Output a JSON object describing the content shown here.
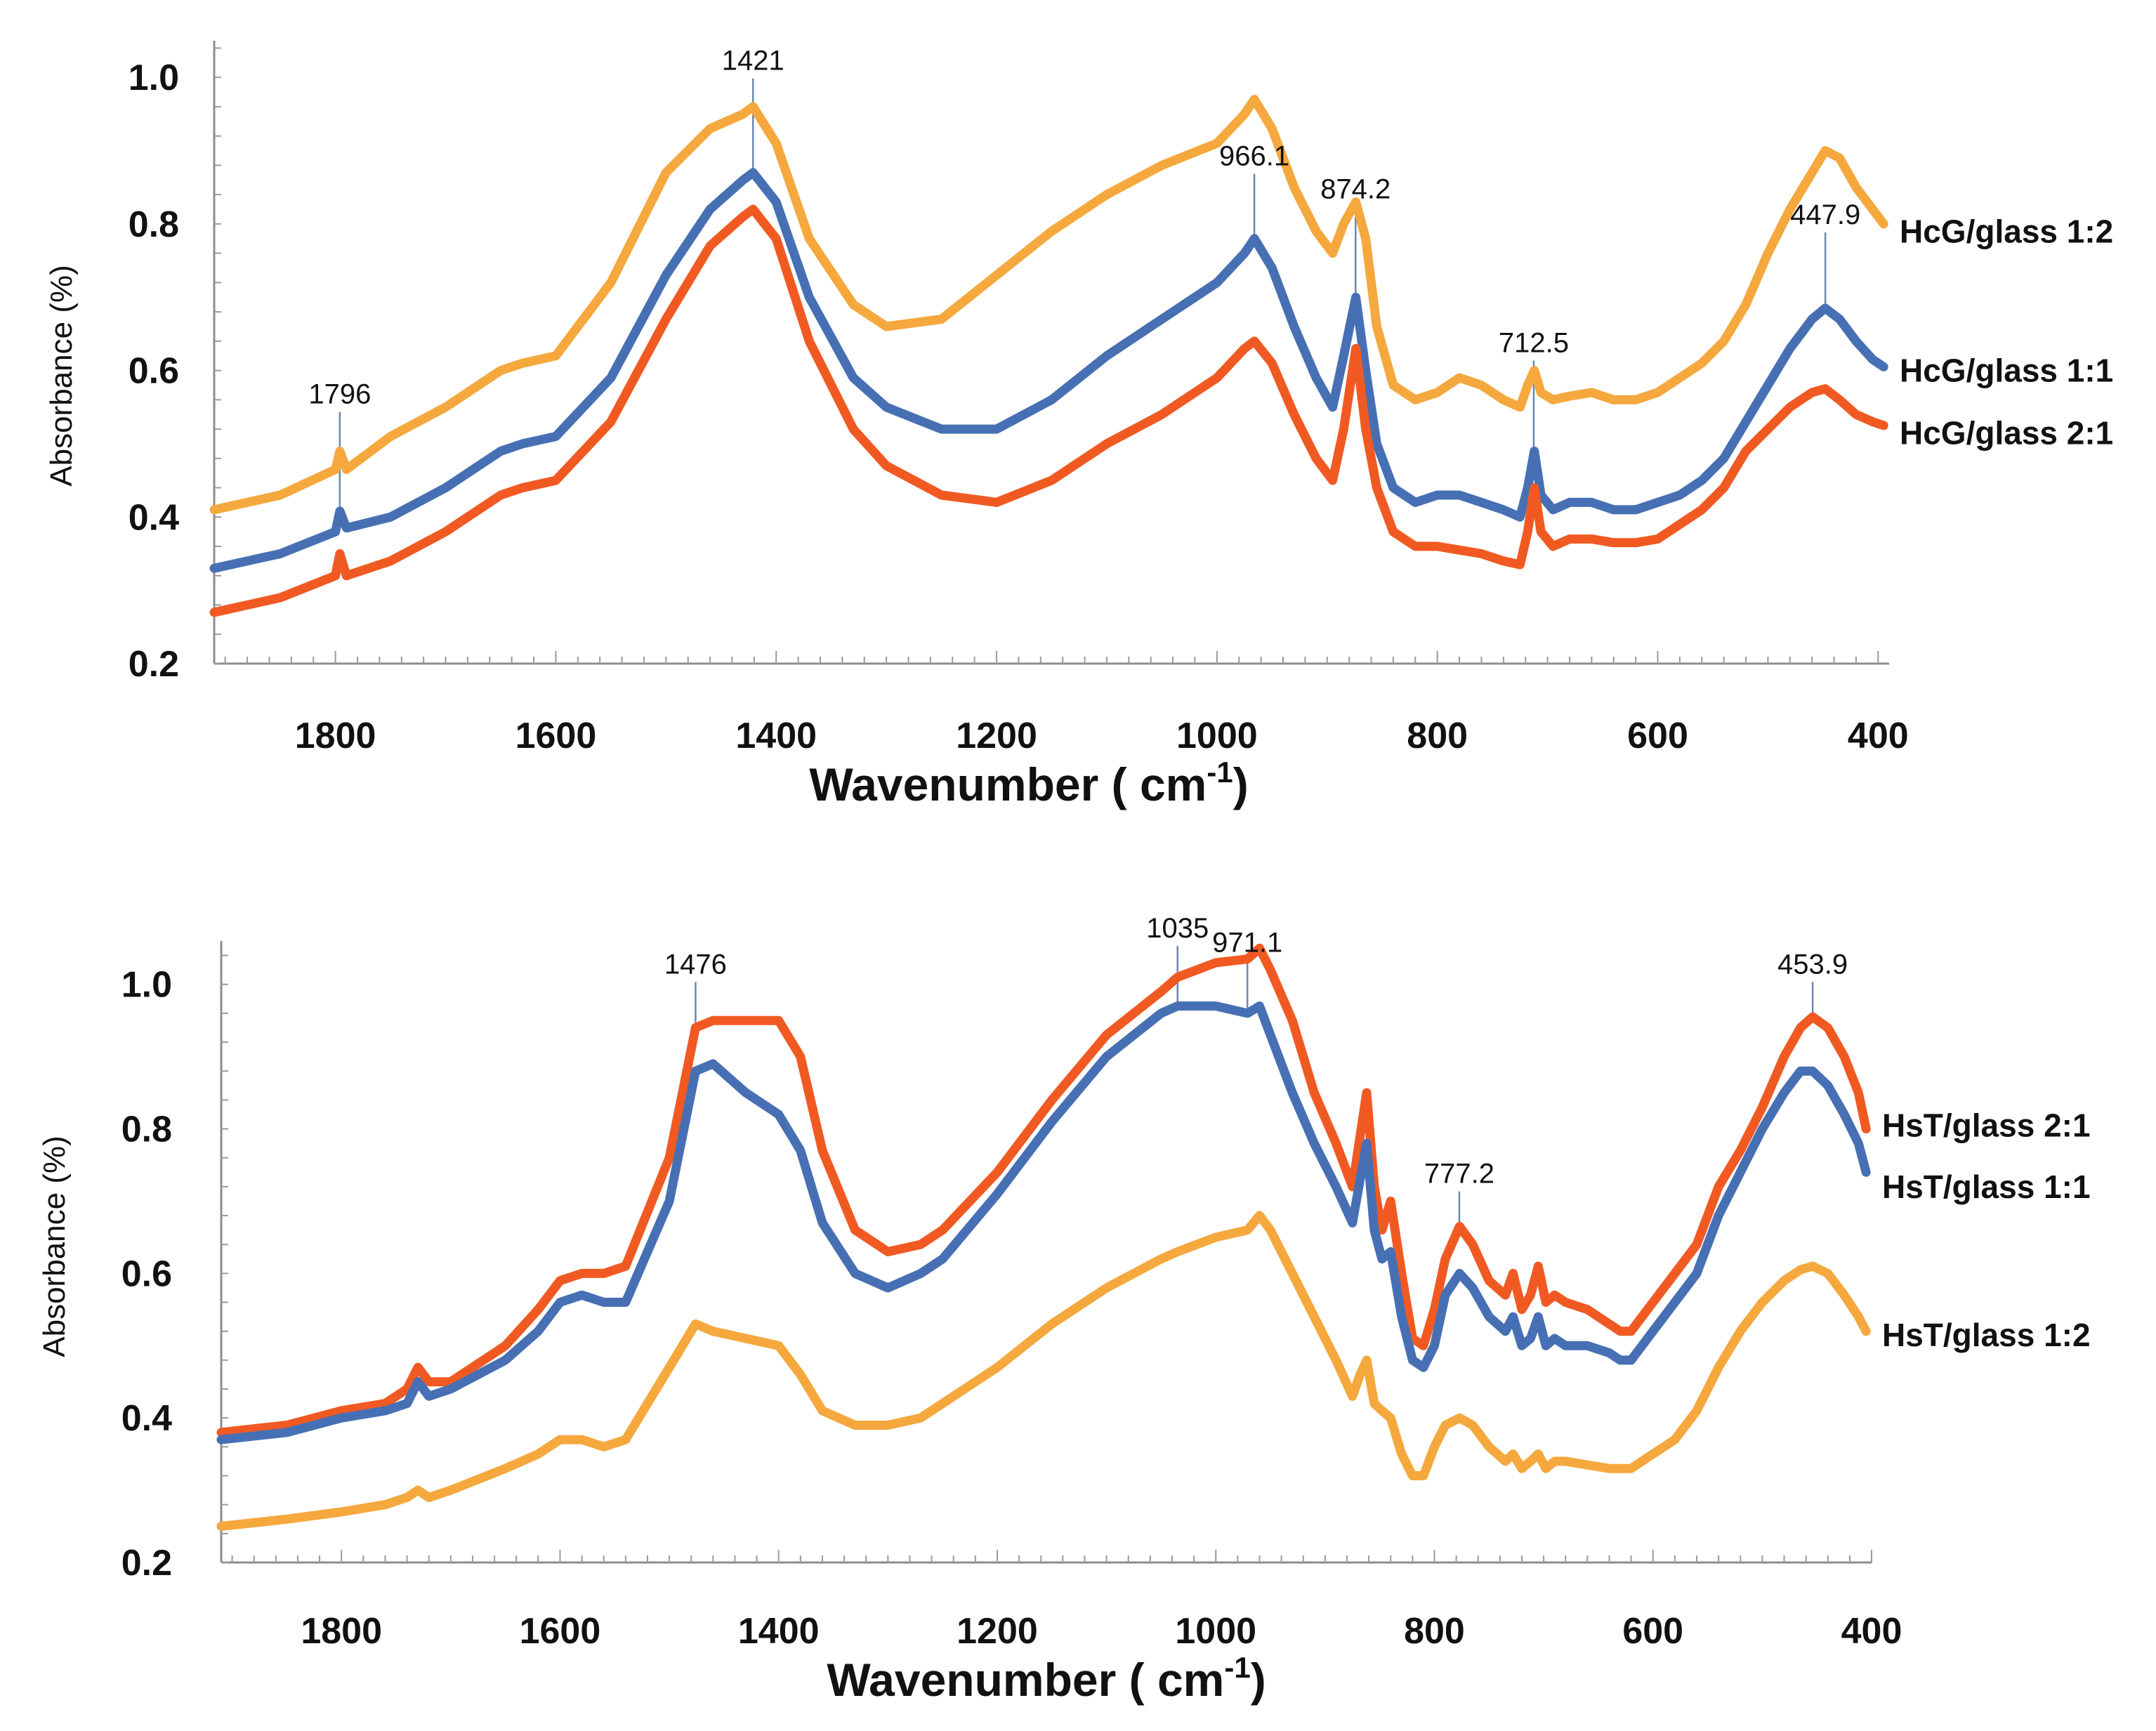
{
  "chart_data": [
    {
      "type": "line",
      "x_title_main": "Wavenumber ( cm",
      "x_title_sup": "-1",
      "x_title_close": ")",
      "ylabel": "Absorbance (%)",
      "xlim": [
        1910,
        390
      ],
      "ylim": [
        0.2,
        1.05
      ],
      "yticks": [
        0.2,
        0.4,
        0.6,
        0.8,
        1.0
      ],
      "ytick_labels": [
        "0.2",
        "0.4",
        "0.6",
        "0.8",
        "1.0"
      ],
      "xticks": [
        1800,
        1600,
        1400,
        1200,
        1000,
        800,
        600,
        400
      ],
      "xtick_labels": [
        "1800",
        "1600",
        "1400",
        "1200",
        "1000",
        "800",
        "600",
        "400"
      ],
      "peaks": [
        {
          "x": 1796,
          "y": 0.408,
          "label": "1796",
          "label_y": 0.555
        },
        {
          "x": 1421,
          "y": 0.868,
          "label": "1421",
          "label_y": 1.01
        },
        {
          "x": 966.1,
          "y": 0.78,
          "label": "966.1",
          "label_y": 0.88
        },
        {
          "x": 874.2,
          "y": 0.7,
          "label": "874.2",
          "label_y": 0.835
        },
        {
          "x": 712.5,
          "y": 0.49,
          "label": "712.5",
          "label_y": 0.625
        },
        {
          "x": 447.9,
          "y": 0.685,
          "label": "447.9",
          "label_y": 0.8
        }
      ],
      "series": [
        {
          "name": "HcG/glass 1:2",
          "color": "#f5a83d",
          "legend_y": 0.79,
          "x": [
            1910,
            1850,
            1800,
            1796,
            1790,
            1750,
            1700,
            1650,
            1630,
            1600,
            1550,
            1500,
            1460,
            1430,
            1421,
            1400,
            1370,
            1330,
            1300,
            1250,
            1200,
            1150,
            1100,
            1050,
            1000,
            975,
            966,
            950,
            930,
            910,
            895,
            885,
            874,
            865,
            855,
            840,
            820,
            800,
            780,
            760,
            740,
            725,
            718,
            712,
            706,
            695,
            680,
            660,
            640,
            620,
            600,
            580,
            560,
            540,
            520,
            500,
            480,
            460,
            448,
            435,
            420,
            405,
            395
          ],
          "y": [
            0.41,
            0.43,
            0.465,
            0.49,
            0.465,
            0.51,
            0.55,
            0.6,
            0.61,
            0.62,
            0.72,
            0.87,
            0.93,
            0.95,
            0.96,
            0.91,
            0.78,
            0.69,
            0.66,
            0.67,
            0.73,
            0.79,
            0.84,
            0.88,
            0.91,
            0.95,
            0.97,
            0.93,
            0.85,
            0.79,
            0.76,
            0.8,
            0.83,
            0.78,
            0.66,
            0.58,
            0.56,
            0.57,
            0.59,
            0.58,
            0.56,
            0.55,
            0.58,
            0.6,
            0.57,
            0.56,
            0.565,
            0.57,
            0.56,
            0.56,
            0.57,
            0.59,
            0.61,
            0.64,
            0.69,
            0.76,
            0.82,
            0.87,
            0.9,
            0.89,
            0.85,
            0.82,
            0.8
          ]
        },
        {
          "name": "HcG/glass 1:1",
          "color": "#4770b4",
          "legend_y": 0.6,
          "x": [
            1910,
            1850,
            1800,
            1796,
            1790,
            1750,
            1700,
            1650,
            1630,
            1600,
            1550,
            1500,
            1460,
            1430,
            1421,
            1400,
            1370,
            1330,
            1300,
            1250,
            1200,
            1150,
            1100,
            1050,
            1000,
            975,
            966,
            950,
            930,
            910,
            895,
            885,
            874,
            865,
            855,
            840,
            820,
            800,
            780,
            760,
            740,
            725,
            718,
            712,
            706,
            695,
            680,
            660,
            640,
            620,
            600,
            580,
            560,
            540,
            520,
            500,
            480,
            460,
            448,
            435,
            420,
            405,
            395
          ],
          "y": [
            0.33,
            0.35,
            0.38,
            0.408,
            0.385,
            0.4,
            0.44,
            0.49,
            0.5,
            0.51,
            0.59,
            0.73,
            0.82,
            0.86,
            0.87,
            0.83,
            0.7,
            0.59,
            0.55,
            0.52,
            0.52,
            0.56,
            0.62,
            0.67,
            0.72,
            0.76,
            0.78,
            0.74,
            0.66,
            0.59,
            0.55,
            0.62,
            0.7,
            0.6,
            0.5,
            0.44,
            0.42,
            0.43,
            0.43,
            0.42,
            0.41,
            0.4,
            0.44,
            0.49,
            0.43,
            0.41,
            0.42,
            0.42,
            0.41,
            0.41,
            0.42,
            0.43,
            0.45,
            0.48,
            0.53,
            0.58,
            0.63,
            0.67,
            0.685,
            0.67,
            0.64,
            0.615,
            0.605
          ]
        },
        {
          "name": "HcG/glass 2:1",
          "color": "#f05a22",
          "legend_y": 0.515,
          "x": [
            1910,
            1850,
            1800,
            1796,
            1790,
            1750,
            1700,
            1650,
            1630,
            1600,
            1550,
            1500,
            1460,
            1430,
            1421,
            1400,
            1370,
            1330,
            1300,
            1250,
            1200,
            1150,
            1100,
            1050,
            1000,
            975,
            966,
            950,
            930,
            910,
            895,
            885,
            874,
            865,
            855,
            840,
            820,
            800,
            780,
            760,
            740,
            725,
            718,
            712,
            706,
            695,
            680,
            660,
            640,
            620,
            600,
            580,
            560,
            540,
            520,
            500,
            480,
            460,
            448,
            435,
            420,
            405,
            395
          ],
          "y": [
            0.27,
            0.29,
            0.32,
            0.35,
            0.32,
            0.34,
            0.38,
            0.43,
            0.44,
            0.45,
            0.53,
            0.67,
            0.77,
            0.81,
            0.82,
            0.78,
            0.64,
            0.52,
            0.47,
            0.43,
            0.42,
            0.45,
            0.5,
            0.54,
            0.59,
            0.63,
            0.64,
            0.61,
            0.54,
            0.48,
            0.45,
            0.52,
            0.63,
            0.52,
            0.44,
            0.38,
            0.36,
            0.36,
            0.355,
            0.35,
            0.34,
            0.335,
            0.38,
            0.44,
            0.38,
            0.36,
            0.37,
            0.37,
            0.365,
            0.365,
            0.37,
            0.39,
            0.41,
            0.44,
            0.49,
            0.52,
            0.55,
            0.57,
            0.575,
            0.56,
            0.54,
            0.53,
            0.525
          ]
        }
      ]
    },
    {
      "type": "line",
      "x_title_main": "Wavenumber ( cm",
      "x_title_sup": "-1",
      "x_title_close": ")",
      "ylabel": "Absorbance (%)",
      "xlim": [
        1910,
        400
      ],
      "ylim": [
        0.2,
        1.06
      ],
      "yticks": [
        0.2,
        0.4,
        0.6,
        0.8,
        1.0
      ],
      "ytick_labels": [
        "0.2",
        "0.4",
        "0.6",
        "0.8",
        "1.0"
      ],
      "xticks": [
        1800,
        1600,
        1400,
        1200,
        1000,
        800,
        600,
        400
      ],
      "xtick_labels": [
        "1800",
        "1600",
        "1400",
        "1200",
        "1000",
        "800",
        "600",
        "400"
      ],
      "peaks": [
        {
          "x": 1476,
          "y": 0.94,
          "label": "1476",
          "label_y": 1.015
        },
        {
          "x": 1035,
          "y": 0.97,
          "label": "1035",
          "label_y": 1.065
        },
        {
          "x": 971.1,
          "y": 0.96,
          "label": "971.1",
          "label_y": 1.045
        },
        {
          "x": 777.2,
          "y": 0.665,
          "label": "777.2",
          "label_y": 0.725
        },
        {
          "x": 453.9,
          "y": 0.955,
          "label": "453.9",
          "label_y": 1.015
        }
      ],
      "series": [
        {
          "name": "HsT/glass 2:1",
          "color": "#f05a22",
          "legend_y": 0.805,
          "x": [
            1910,
            1850,
            1800,
            1760,
            1740,
            1730,
            1720,
            1700,
            1650,
            1620,
            1600,
            1580,
            1560,
            1540,
            1500,
            1476,
            1460,
            1430,
            1400,
            1380,
            1360,
            1330,
            1300,
            1270,
            1250,
            1200,
            1150,
            1100,
            1050,
            1035,
            1000,
            971,
            960,
            950,
            930,
            910,
            890,
            875,
            868,
            862,
            855,
            848,
            840,
            830,
            820,
            810,
            800,
            790,
            777,
            765,
            750,
            735,
            728,
            720,
            712,
            705,
            698,
            690,
            680,
            660,
            640,
            630,
            620,
            600,
            580,
            560,
            540,
            520,
            500,
            480,
            465,
            454,
            440,
            425,
            412,
            405
          ],
          "y": [
            0.38,
            0.39,
            0.41,
            0.42,
            0.44,
            0.47,
            0.45,
            0.45,
            0.5,
            0.55,
            0.59,
            0.6,
            0.6,
            0.61,
            0.76,
            0.94,
            0.95,
            0.95,
            0.95,
            0.9,
            0.77,
            0.66,
            0.63,
            0.64,
            0.66,
            0.74,
            0.84,
            0.93,
            0.99,
            1.01,
            1.03,
            1.035,
            1.05,
            1.02,
            0.95,
            0.85,
            0.78,
            0.72,
            0.79,
            0.85,
            0.72,
            0.66,
            0.7,
            0.6,
            0.51,
            0.5,
            0.55,
            0.62,
            0.665,
            0.64,
            0.59,
            0.57,
            0.6,
            0.55,
            0.57,
            0.61,
            0.56,
            0.57,
            0.56,
            0.55,
            0.53,
            0.52,
            0.52,
            0.56,
            0.6,
            0.64,
            0.72,
            0.77,
            0.83,
            0.9,
            0.94,
            0.955,
            0.94,
            0.9,
            0.85,
            0.8
          ]
        },
        {
          "name": "HsT/glass 1:1",
          "color": "#4770b4",
          "legend_y": 0.72,
          "x": [
            1910,
            1850,
            1800,
            1760,
            1740,
            1730,
            1720,
            1700,
            1650,
            1620,
            1600,
            1580,
            1560,
            1540,
            1500,
            1476,
            1460,
            1430,
            1400,
            1380,
            1360,
            1330,
            1300,
            1270,
            1250,
            1200,
            1150,
            1100,
            1050,
            1035,
            1000,
            971,
            960,
            950,
            930,
            910,
            890,
            875,
            868,
            862,
            855,
            848,
            840,
            830,
            820,
            810,
            800,
            790,
            777,
            765,
            750,
            735,
            728,
            720,
            712,
            705,
            698,
            690,
            680,
            660,
            640,
            630,
            620,
            600,
            580,
            560,
            540,
            520,
            500,
            480,
            465,
            454,
            440,
            425,
            412,
            405
          ],
          "y": [
            0.37,
            0.38,
            0.4,
            0.41,
            0.42,
            0.45,
            0.43,
            0.44,
            0.48,
            0.52,
            0.56,
            0.57,
            0.56,
            0.56,
            0.7,
            0.88,
            0.89,
            0.85,
            0.82,
            0.77,
            0.67,
            0.6,
            0.58,
            0.6,
            0.62,
            0.71,
            0.81,
            0.9,
            0.96,
            0.97,
            0.97,
            0.96,
            0.97,
            0.93,
            0.85,
            0.78,
            0.72,
            0.67,
            0.73,
            0.78,
            0.66,
            0.62,
            0.63,
            0.54,
            0.48,
            0.47,
            0.5,
            0.57,
            0.6,
            0.58,
            0.54,
            0.52,
            0.54,
            0.5,
            0.51,
            0.54,
            0.5,
            0.51,
            0.5,
            0.5,
            0.49,
            0.48,
            0.48,
            0.52,
            0.56,
            0.6,
            0.68,
            0.74,
            0.8,
            0.85,
            0.88,
            0.88,
            0.86,
            0.82,
            0.78,
            0.74
          ]
        },
        {
          "name": "HsT/glass 1:2",
          "color": "#f5a83d",
          "legend_y": 0.515,
          "x": [
            1910,
            1850,
            1800,
            1760,
            1740,
            1730,
            1720,
            1700,
            1650,
            1620,
            1600,
            1580,
            1560,
            1540,
            1500,
            1476,
            1460,
            1430,
            1400,
            1380,
            1360,
            1330,
            1300,
            1270,
            1250,
            1200,
            1150,
            1100,
            1050,
            1035,
            1000,
            971,
            960,
            950,
            930,
            910,
            890,
            875,
            868,
            862,
            855,
            848,
            840,
            830,
            820,
            810,
            800,
            790,
            777,
            765,
            750,
            735,
            728,
            720,
            712,
            705,
            698,
            690,
            680,
            660,
            640,
            630,
            620,
            600,
            580,
            560,
            540,
            520,
            500,
            480,
            465,
            454,
            440,
            425,
            412,
            405
          ],
          "y": [
            0.25,
            0.26,
            0.27,
            0.28,
            0.29,
            0.3,
            0.29,
            0.3,
            0.33,
            0.35,
            0.37,
            0.37,
            0.36,
            0.37,
            0.47,
            0.53,
            0.52,
            0.51,
            0.5,
            0.46,
            0.41,
            0.39,
            0.39,
            0.4,
            0.42,
            0.47,
            0.53,
            0.58,
            0.62,
            0.63,
            0.65,
            0.66,
            0.68,
            0.66,
            0.6,
            0.54,
            0.48,
            0.43,
            0.46,
            0.48,
            0.42,
            0.41,
            0.4,
            0.35,
            0.32,
            0.32,
            0.36,
            0.39,
            0.4,
            0.39,
            0.36,
            0.34,
            0.35,
            0.33,
            0.34,
            0.35,
            0.33,
            0.34,
            0.34,
            0.335,
            0.33,
            0.33,
            0.33,
            0.35,
            0.37,
            0.41,
            0.47,
            0.52,
            0.56,
            0.59,
            0.605,
            0.61,
            0.6,
            0.57,
            0.54,
            0.52
          ]
        }
      ]
    }
  ]
}
